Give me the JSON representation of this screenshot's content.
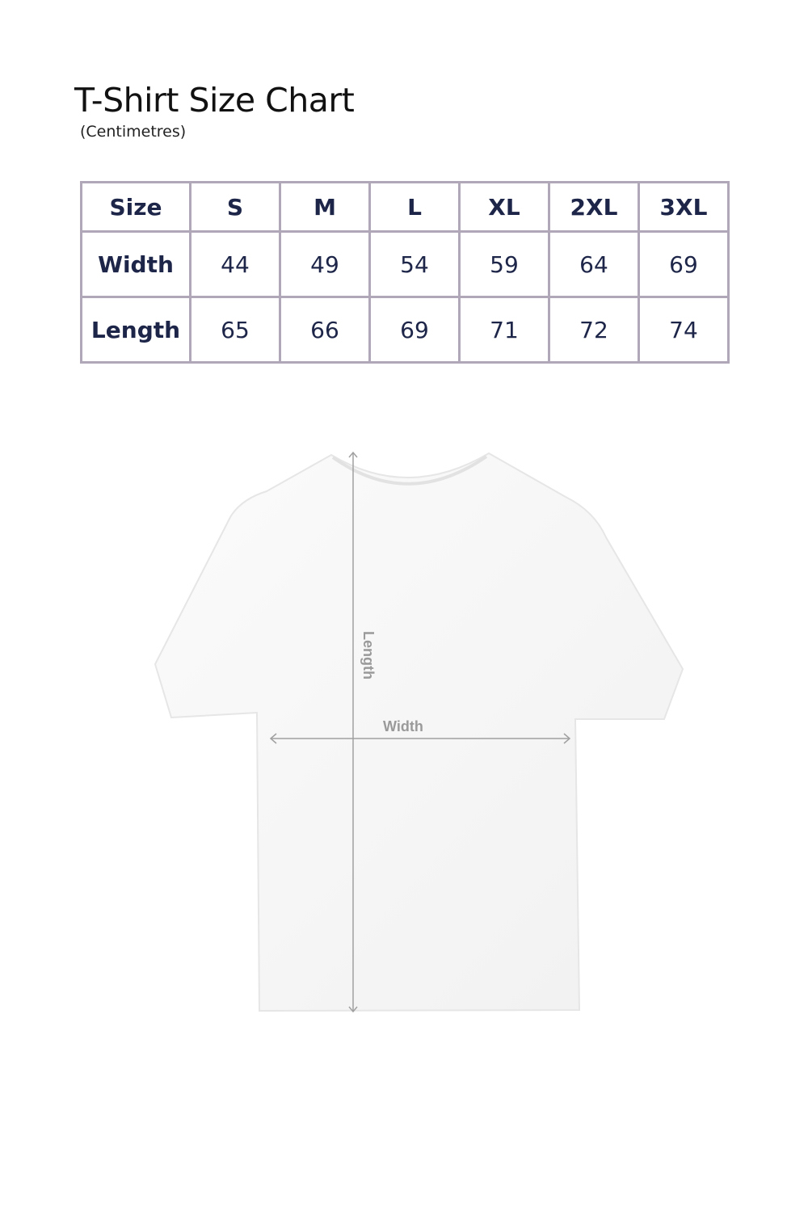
{
  "title": "T-Shirt Size Chart",
  "unit": "(Centimetres)",
  "table": {
    "header": [
      "Size",
      "S",
      "M",
      "L",
      "XL",
      "2XL",
      "3XL"
    ],
    "rows": [
      {
        "label": "Width",
        "values": [
          "44",
          "49",
          "54",
          "59",
          "64",
          "69"
        ]
      },
      {
        "label": "Length",
        "values": [
          "65",
          "66",
          "69",
          "71",
          "72",
          "74"
        ]
      }
    ]
  },
  "diagram": {
    "length_label": "Length",
    "width_label": "Width"
  },
  "colors": {
    "text": "#1d2548",
    "border": "#b0a8b9",
    "arrow": "#a0a0a0"
  }
}
